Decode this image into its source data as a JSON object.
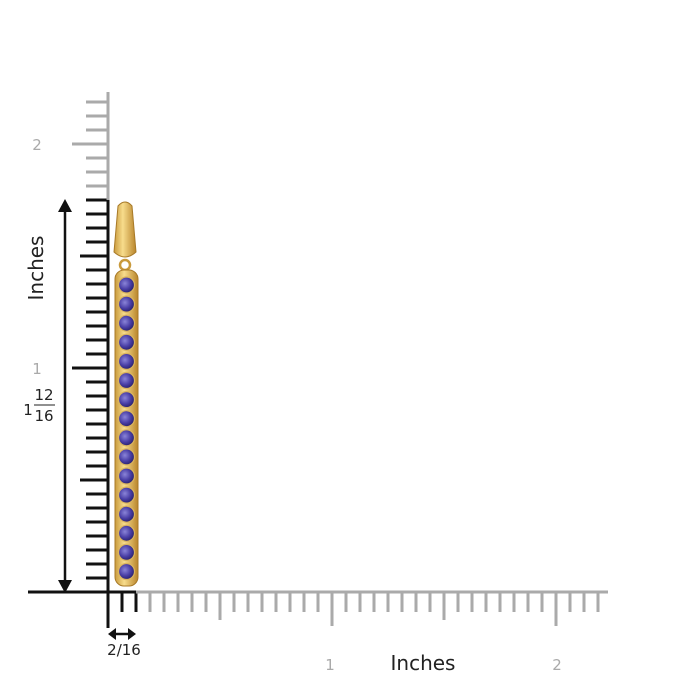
{
  "vertical_axis": {
    "label": "Inches",
    "tick_labels": [
      "2",
      "1"
    ]
  },
  "height_measure": {
    "whole": "1",
    "numerator": "12",
    "denominator": "16"
  },
  "width_measure": {
    "label": "2/16"
  },
  "horizontal_axis": {
    "label": "Inches",
    "tick_labels": [
      "1",
      "2"
    ]
  }
}
